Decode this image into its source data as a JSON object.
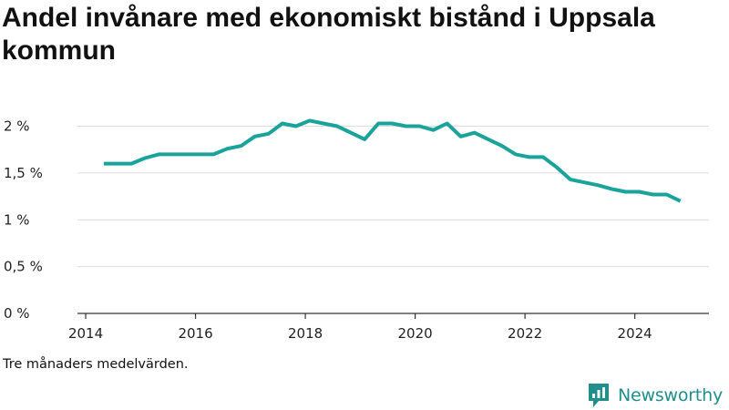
{
  "title": "Andel invånare med ekonomiskt bistånd i Uppsala kommun",
  "footnote": "Tre månaders medelvärden.",
  "brand": {
    "name": "Newsworthy",
    "icon": "newsworthy-logo-icon"
  },
  "colors": {
    "line": "#1aa39b",
    "grid": "#dddddd",
    "axis": "#333333",
    "brand": "#1e8f8c"
  },
  "chart_data": {
    "type": "line",
    "title": "Andel invånare med ekonomiskt bistånd i Uppsala kommun",
    "xlabel": "",
    "ylabel": "",
    "xlim": [
      2013.85,
      2025.35
    ],
    "ylim": [
      0,
      2.2
    ],
    "grid": true,
    "x_ticks": [
      2014,
      2016,
      2018,
      2020,
      2022,
      2024
    ],
    "y_ticks": [
      {
        "value": 0,
        "label": "0 %"
      },
      {
        "value": 0.5,
        "label": "0,5 %"
      },
      {
        "value": 1,
        "label": "1 %"
      },
      {
        "value": 1.5,
        "label": "1,5 %"
      },
      {
        "value": 2,
        "label": "2 %"
      }
    ],
    "series": [
      {
        "name": "Andel invånare med ekonomiskt bistånd",
        "x": [
          2014.33,
          2014.58,
          2014.83,
          2015.08,
          2015.33,
          2015.58,
          2015.83,
          2016.08,
          2016.33,
          2016.58,
          2016.83,
          2017.08,
          2017.33,
          2017.58,
          2017.83,
          2018.08,
          2018.33,
          2018.58,
          2018.83,
          2019.08,
          2019.33,
          2019.58,
          2019.83,
          2020.08,
          2020.33,
          2020.58,
          2020.83,
          2021.08,
          2021.33,
          2021.58,
          2021.83,
          2022.08,
          2022.33,
          2022.58,
          2022.83,
          2023.08,
          2023.33,
          2023.58,
          2023.83,
          2024.08,
          2024.33,
          2024.58,
          2024.83
        ],
        "values": [
          1.6,
          1.6,
          1.6,
          1.66,
          1.7,
          1.7,
          1.7,
          1.7,
          1.7,
          1.76,
          1.79,
          1.89,
          1.92,
          2.03,
          2.0,
          2.06,
          2.03,
          2.0,
          1.93,
          1.86,
          2.03,
          2.03,
          2.0,
          2.0,
          1.96,
          2.03,
          1.89,
          1.93,
          1.86,
          1.79,
          1.7,
          1.67,
          1.67,
          1.56,
          1.43,
          1.4,
          1.37,
          1.33,
          1.3,
          1.3,
          1.27,
          1.27,
          1.2
        ]
      }
    ]
  }
}
